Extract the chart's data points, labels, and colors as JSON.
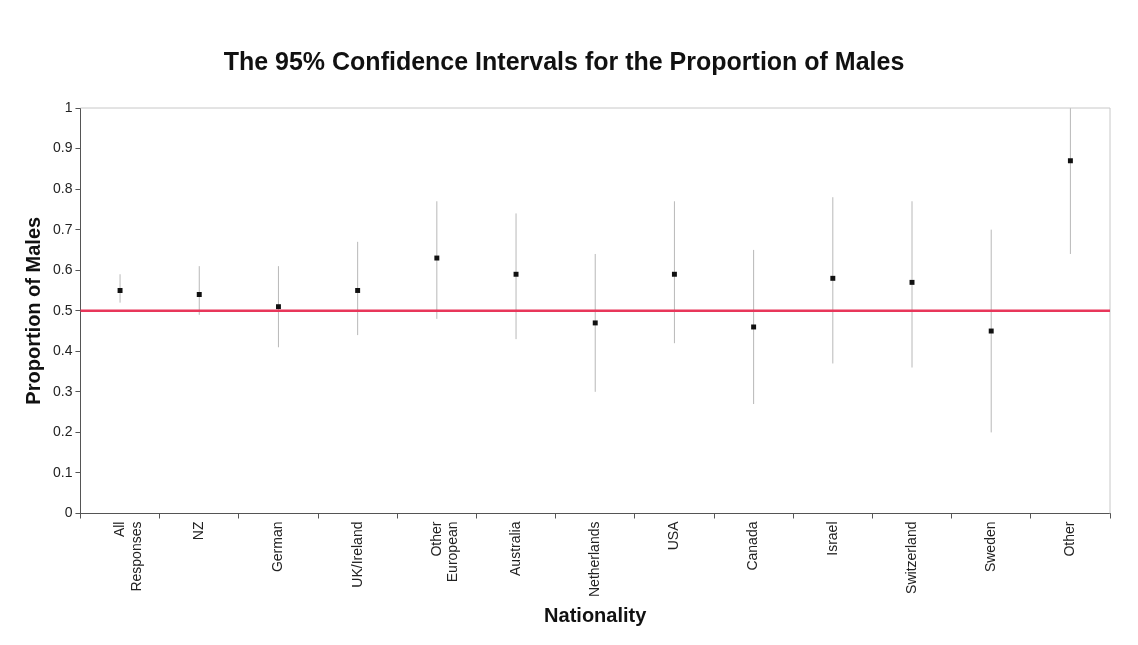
{
  "chart_data": {
    "type": "scatter",
    "title": "The 95% Confidence Intervals for the Proportion of Males",
    "xlabel": "Nationality",
    "ylabel": "Proportion of Males",
    "categories": [
      "All Responses",
      "NZ",
      "German",
      "UK/Ireland",
      "Other European",
      "Australia",
      "Netherlands",
      "USA",
      "Canada",
      "Israel",
      "Switzerland",
      "Sweden",
      "Other"
    ],
    "series": [
      {
        "color": "#111111",
        "values": [
          0.55,
          0.54,
          0.51,
          0.55,
          0.63,
          0.59,
          0.47,
          0.59,
          0.46,
          0.58,
          0.57,
          0.45,
          0.87
        ],
        "errors": [
          [
            0.52,
            0.59
          ],
          [
            0.49,
            0.61
          ],
          [
            0.41,
            0.61
          ],
          [
            0.44,
            0.67
          ],
          [
            0.48,
            0.77
          ],
          [
            0.43,
            0.74
          ],
          [
            0.3,
            0.64
          ],
          [
            0.42,
            0.77
          ],
          [
            0.27,
            0.65
          ],
          [
            0.37,
            0.78
          ],
          [
            0.36,
            0.77
          ],
          [
            0.2,
            0.7
          ],
          [
            0.64,
            1.0
          ]
        ]
      }
    ],
    "ylim": [
      0,
      1
    ],
    "yticks": [
      0,
      0.1,
      0.2,
      0.3,
      0.4,
      0.5,
      0.6,
      0.7,
      0.8,
      0.9,
      1
    ],
    "ref_lines": [
      {
        "axis": "y",
        "value": 0.5,
        "color": "#e8365a"
      }
    ],
    "marker": "square",
    "grid": false,
    "legend": false
  }
}
